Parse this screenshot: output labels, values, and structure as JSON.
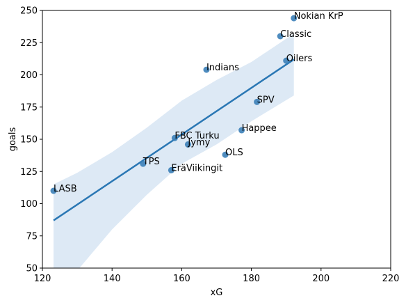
{
  "chart_data": {
    "type": "scatter",
    "xlabel": "xG",
    "ylabel": "goals",
    "xlim": [
      120,
      220
    ],
    "ylim": [
      50,
      250
    ],
    "xticks": [
      120,
      140,
      160,
      180,
      200,
      220
    ],
    "yticks": [
      50,
      75,
      100,
      125,
      150,
      175,
      200,
      225,
      250
    ],
    "grid": false,
    "colors": {
      "points": "#3b7fb8",
      "line": "#2a77b4",
      "band": "#c6dbef"
    },
    "points": [
      {
        "label": "Nokian KrP",
        "x": 192.2,
        "y": 244
      },
      {
        "label": "Classic",
        "x": 188.3,
        "y": 230
      },
      {
        "label": "Oilers",
        "x": 190.0,
        "y": 211
      },
      {
        "label": "Indians",
        "x": 167.1,
        "y": 204
      },
      {
        "label": "SPV",
        "x": 181.6,
        "y": 179
      },
      {
        "label": "Happee",
        "x": 177.2,
        "y": 157
      },
      {
        "label": "FBC Turku",
        "x": 158.0,
        "y": 151
      },
      {
        "label": "Jymy",
        "x": 161.8,
        "y": 146
      },
      {
        "label": "OLS",
        "x": 172.5,
        "y": 138
      },
      {
        "label": "TPS",
        "x": 148.9,
        "y": 131
      },
      {
        "label": "EräViikingit",
        "x": 157.0,
        "y": 126
      },
      {
        "label": "LASB",
        "x": 123.2,
        "y": 110
      }
    ],
    "regression": {
      "x": [
        123.2,
        192.2
      ],
      "y": [
        87,
        212
      ]
    },
    "confidence_band": {
      "x": [
        123.2,
        130,
        140,
        150,
        160,
        170,
        180,
        192.2
      ],
      "upper": [
        115,
        124,
        140,
        159,
        180,
        196,
        210,
        232
      ],
      "lower": [
        46,
        48,
        80,
        107,
        131,
        146,
        164,
        184
      ]
    }
  }
}
